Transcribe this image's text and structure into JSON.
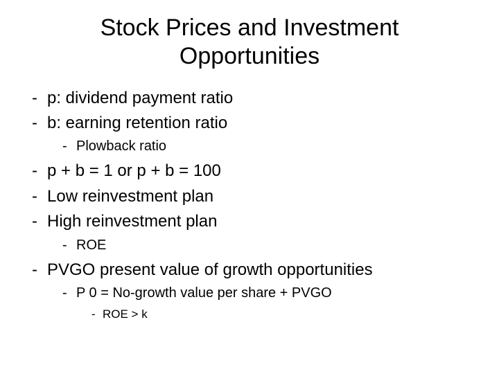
{
  "title": "Stock Prices and Investment Opportunities",
  "bullets": {
    "l1_1": "p: dividend payment ratio",
    "l1_2": "b: earning retention ratio",
    "l2_1": "Plowback ratio",
    "l1_3": "p + b = 1 or p + b = 100",
    "l1_4": "Low reinvestment plan",
    "l1_5": "High reinvestment plan",
    "l2_2": "ROE",
    "l1_6": "PVGO present value of growth opportunities",
    "l2_3": "P 0 = No-growth value per share + PVGO",
    "l3_1": "ROE > k"
  },
  "styling": {
    "background_color": "#ffffff",
    "text_color": "#000000",
    "title_fontsize": 34,
    "level1_fontsize": 24,
    "level2_fontsize": 20,
    "level3_fontsize": 17,
    "font_family": "Arial"
  }
}
